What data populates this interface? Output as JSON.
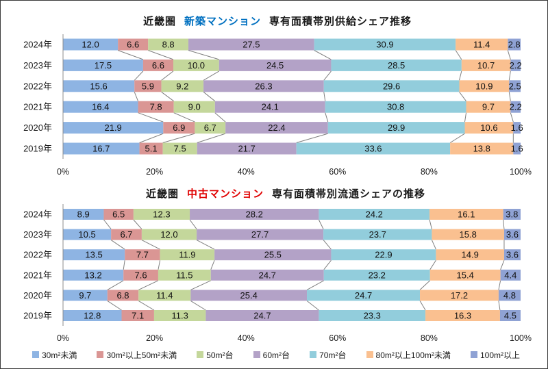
{
  "chart_data": [
    {
      "type": "bar",
      "orientation": "horizontal",
      "stacking": "percent",
      "title": {
        "prefix": "近畿圏",
        "highlight": "新築マンション",
        "suffix": "専有面積帯別供給シェア推移",
        "highlight_color": "#0070C0"
      },
      "categories": [
        "2024年",
        "2023年",
        "2022年",
        "2021年",
        "2020年",
        "2019年"
      ],
      "xlim": [
        0,
        100
      ],
      "xticks": [
        "0%",
        "20%",
        "40%",
        "60%",
        "80%",
        "100%"
      ],
      "series": [
        {
          "name": "30m²未満",
          "color": "#8EB4E3",
          "values": [
            12.0,
            17.5,
            15.6,
            16.4,
            21.9,
            16.7
          ]
        },
        {
          "name": "30m²以上50m²未満",
          "color": "#DA9694",
          "values": [
            6.6,
            6.6,
            5.9,
            7.8,
            6.9,
            5.1
          ]
        },
        {
          "name": "50m²台",
          "color": "#C4D79B",
          "values": [
            8.8,
            10.0,
            9.2,
            9.0,
            6.7,
            7.5
          ]
        },
        {
          "name": "60m²台",
          "color": "#B3A2C7",
          "values": [
            27.5,
            24.5,
            26.3,
            24.1,
            22.4,
            21.7
          ]
        },
        {
          "name": "70m²台",
          "color": "#92CDDC",
          "values": [
            30.9,
            28.5,
            29.6,
            30.8,
            29.9,
            33.6
          ]
        },
        {
          "name": "80m²以上100m²未満",
          "color": "#FAC090",
          "values": [
            11.4,
            10.7,
            10.9,
            9.7,
            10.6,
            13.8
          ]
        },
        {
          "name": "100m²以上",
          "color": "#8FA2D4",
          "values": [
            2.8,
            2.2,
            2.5,
            2.2,
            1.6,
            1.6
          ]
        }
      ]
    },
    {
      "type": "bar",
      "orientation": "horizontal",
      "stacking": "percent",
      "title": {
        "prefix": "近畿圏",
        "highlight": "中古マンション",
        "suffix": "専有面積帯別流通シェアの推移",
        "highlight_color": "#E00000"
      },
      "categories": [
        "2024年",
        "2023年",
        "2022年",
        "2021年",
        "2020年",
        "2019年"
      ],
      "xlim": [
        0,
        100
      ],
      "xticks": [
        "0%",
        "20%",
        "40%",
        "60%",
        "80%",
        "100%"
      ],
      "series": [
        {
          "name": "30m²未満",
          "color": "#8EB4E3",
          "values": [
            8.9,
            10.5,
            13.5,
            13.2,
            9.7,
            12.8
          ]
        },
        {
          "name": "30m²以上50m²未満",
          "color": "#DA9694",
          "values": [
            6.5,
            6.7,
            7.7,
            7.6,
            6.8,
            7.1
          ]
        },
        {
          "name": "50m²台",
          "color": "#C4D79B",
          "values": [
            12.3,
            12.0,
            11.9,
            11.5,
            11.4,
            11.3
          ]
        },
        {
          "name": "60m²台",
          "color": "#B3A2C7",
          "values": [
            28.2,
            27.7,
            25.5,
            24.7,
            25.4,
            24.7
          ]
        },
        {
          "name": "70m²台",
          "color": "#92CDDC",
          "values": [
            24.2,
            23.7,
            22.9,
            23.2,
            24.7,
            23.3
          ]
        },
        {
          "name": "80m²以上100m²未満",
          "color": "#FAC090",
          "values": [
            16.1,
            15.8,
            14.9,
            15.4,
            17.2,
            16.3
          ]
        },
        {
          "name": "100m²以上",
          "color": "#8FA2D4",
          "values": [
            3.8,
            3.6,
            3.6,
            4.4,
            4.8,
            4.5
          ]
        }
      ]
    }
  ]
}
